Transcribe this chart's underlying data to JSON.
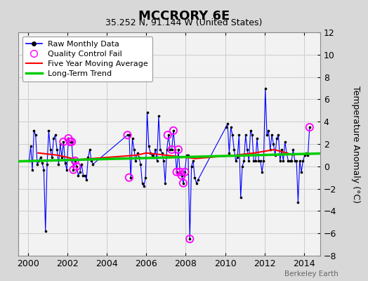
{
  "title": "MCCRORY 6E",
  "subtitle": "35.252 N, 91.144 W (United States)",
  "ylabel": "Temperature Anomaly (°C)",
  "watermark": "Berkeley Earth",
  "ylim": [
    -8,
    12
  ],
  "yticks": [
    -8,
    -6,
    -4,
    -2,
    0,
    2,
    4,
    6,
    8,
    10,
    12
  ],
  "xlim": [
    1999.5,
    2014.83
  ],
  "xticks": [
    2000,
    2002,
    2004,
    2006,
    2008,
    2010,
    2012,
    2014
  ],
  "bg_color": "#d8d8d8",
  "plot_bg_color": "#f2f2f2",
  "raw_color": "#0000ff",
  "raw_dot_color": "#000000",
  "qc_color": "#ff00ff",
  "ma_color": "#ff0000",
  "trend_color": "#00cc00",
  "raw_data_x": [
    2000.042,
    2000.125,
    2000.208,
    2000.292,
    2000.375,
    2000.458,
    2000.542,
    2000.625,
    2000.708,
    2000.792,
    2000.875,
    2000.958,
    2001.042,
    2001.125,
    2001.208,
    2001.292,
    2001.375,
    2001.458,
    2001.542,
    2001.625,
    2001.708,
    2001.792,
    2001.875,
    2001.958,
    2002.042,
    2002.125,
    2002.208,
    2002.292,
    2002.375,
    2002.458,
    2002.542,
    2002.625,
    2002.708,
    2002.792,
    2002.875,
    2002.958,
    2003.042,
    2003.125,
    2003.208,
    2003.292,
    2005.042,
    2005.125,
    2005.208,
    2005.292,
    2005.375,
    2005.458,
    2005.542,
    2005.625,
    2005.708,
    2005.792,
    2005.875,
    2005.958,
    2006.042,
    2006.125,
    2006.208,
    2006.292,
    2006.375,
    2006.458,
    2006.542,
    2006.625,
    2006.708,
    2006.792,
    2006.875,
    2006.958,
    2007.042,
    2007.125,
    2007.208,
    2007.292,
    2007.375,
    2007.458,
    2007.542,
    2007.625,
    2007.708,
    2007.792,
    2007.875,
    2007.958,
    2008.042,
    2008.125,
    2008.208,
    2008.292,
    2008.375,
    2008.458,
    2008.542,
    2008.625,
    2010.042,
    2010.125,
    2010.208,
    2010.292,
    2010.375,
    2010.458,
    2010.542,
    2010.625,
    2010.708,
    2010.792,
    2010.875,
    2010.958,
    2011.042,
    2011.125,
    2011.208,
    2011.292,
    2011.375,
    2011.458,
    2011.542,
    2011.625,
    2011.708,
    2011.792,
    2011.875,
    2011.958,
    2012.042,
    2012.125,
    2012.208,
    2012.292,
    2012.375,
    2012.458,
    2012.542,
    2012.625,
    2012.708,
    2012.792,
    2012.875,
    2012.958,
    2013.042,
    2013.125,
    2013.208,
    2013.292,
    2013.375,
    2013.458,
    2013.542,
    2013.625,
    2013.708,
    2013.792,
    2013.875,
    2013.958,
    2014.042,
    2014.125,
    2014.208,
    2014.292
  ],
  "raw_data_y": [
    0.5,
    1.8,
    -0.3,
    3.2,
    2.8,
    0.2,
    0.5,
    0.8,
    0.3,
    -0.3,
    -5.8,
    0.2,
    3.2,
    1.5,
    0.8,
    2.5,
    2.8,
    1.5,
    0.2,
    2.0,
    0.8,
    2.2,
    0.3,
    -0.3,
    2.5,
    2.2,
    2.2,
    -0.3,
    0.5,
    0.0,
    -0.8,
    -0.5,
    0.2,
    -0.8,
    -0.8,
    -1.2,
    0.8,
    1.5,
    0.5,
    0.2,
    2.8,
    2.8,
    -1.0,
    2.5,
    1.5,
    0.5,
    1.2,
    0.8,
    0.2,
    -1.5,
    -1.8,
    -1.0,
    4.8,
    1.8,
    1.2,
    1.0,
    0.8,
    1.5,
    0.5,
    4.5,
    1.5,
    1.2,
    0.5,
    -1.5,
    1.5,
    2.8,
    1.5,
    1.5,
    3.2,
    1.5,
    -0.5,
    1.5,
    -0.5,
    -0.8,
    -1.5,
    -0.5,
    1.0,
    1.0,
    -6.5,
    0.0,
    0.5,
    -1.0,
    -1.5,
    -1.2,
    3.5,
    3.8,
    1.2,
    3.5,
    2.8,
    1.5,
    0.5,
    0.8,
    2.8,
    -2.8,
    0.0,
    0.5,
    2.8,
    1.5,
    0.5,
    3.2,
    2.8,
    0.5,
    0.5,
    2.5,
    0.5,
    0.5,
    -0.5,
    0.5,
    7.0,
    2.8,
    3.2,
    1.5,
    2.8,
    2.0,
    1.0,
    2.5,
    2.8,
    0.5,
    1.5,
    0.5,
    2.2,
    1.2,
    0.5,
    0.5,
    0.5,
    1.5,
    0.5,
    0.5,
    -3.2,
    0.5,
    -0.5,
    0.5,
    1.0,
    1.2,
    1.0,
    3.5
  ],
  "qc_fail_x": [
    2001.792,
    2002.042,
    2002.125,
    2002.208,
    2002.292,
    2002.375,
    2002.458,
    2005.042,
    2005.125,
    2007.083,
    2007.292,
    2007.375,
    2007.542,
    2007.625,
    2007.708,
    2007.792,
    2007.875,
    2007.958,
    2008.208,
    2014.292
  ],
  "qc_fail_y": [
    2.2,
    2.5,
    2.2,
    2.2,
    -0.3,
    0.5,
    0.0,
    2.8,
    -1.0,
    2.8,
    1.5,
    3.2,
    -0.5,
    1.5,
    -0.5,
    -0.8,
    -1.5,
    -0.5,
    -6.5,
    3.5
  ],
  "trend_x": [
    1999.5,
    2014.83
  ],
  "trend_y": [
    0.45,
    1.15
  ],
  "ma_x": [
    2000.5,
    2001.5,
    2002.0,
    2002.5,
    2005.5,
    2006.0,
    2006.5,
    2007.0,
    2007.5,
    2008.5,
    2010.5,
    2011.5,
    2012.5,
    2013.5
  ],
  "ma_y": [
    1.2,
    1.0,
    0.8,
    0.6,
    1.0,
    1.2,
    1.1,
    1.0,
    0.9,
    0.7,
    1.0,
    1.2,
    1.5,
    1.0
  ]
}
